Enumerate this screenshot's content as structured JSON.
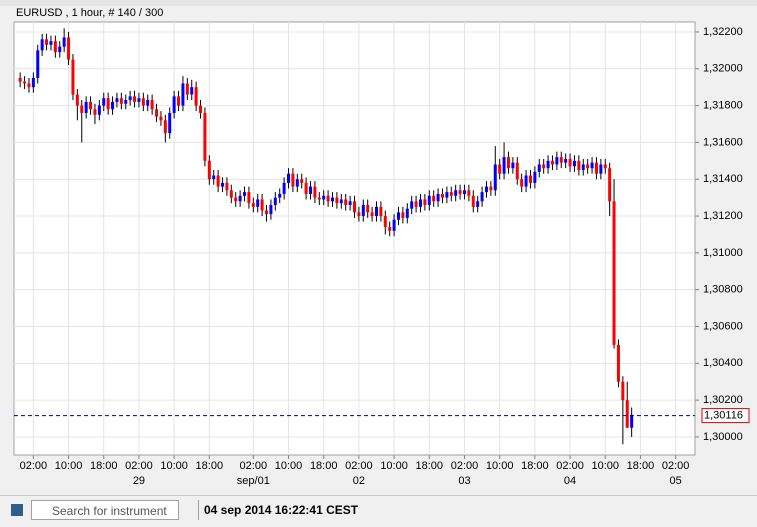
{
  "chart_data": {
    "type": "candlestick",
    "title": "EURUSD , 1 hour, # 140 / 300",
    "up_color": "#0000ff",
    "down_color": "#ff0000",
    "grid": true,
    "xlim": [
      -1.4,
      153.4
    ],
    "ylim": [
      1.29902,
      1.32254
    ],
    "xticks": [
      {
        "value": 3,
        "label": "02:00"
      },
      {
        "value": 11,
        "label": "10:00"
      },
      {
        "value": 19,
        "label": "18:00"
      },
      {
        "value": 27,
        "label": "02:00"
      },
      {
        "value": 35,
        "label": "10:00"
      },
      {
        "value": 43,
        "label": "18:00"
      },
      {
        "value": 53,
        "label": "02:00"
      },
      {
        "value": 61,
        "label": "10:00"
      },
      {
        "value": 69,
        "label": "18:00"
      },
      {
        "value": 77,
        "label": "02:00"
      },
      {
        "value": 85,
        "label": "10:00"
      },
      {
        "value": 93,
        "label": "18:00"
      },
      {
        "value": 101,
        "label": "02:00"
      },
      {
        "value": 109,
        "label": "10:00"
      },
      {
        "value": 117,
        "label": "18:00"
      },
      {
        "value": 125,
        "label": "02:00"
      },
      {
        "value": 133,
        "label": "10:00"
      },
      {
        "value": 141,
        "label": "18:00"
      },
      {
        "value": 149,
        "label": "02:00"
      }
    ],
    "date_ticks": [
      {
        "value": 27,
        "label": "29"
      },
      {
        "value": 53,
        "label": "sep/01"
      },
      {
        "value": 77,
        "label": "02"
      },
      {
        "value": 101,
        "label": "03"
      },
      {
        "value": 125,
        "label": "04"
      },
      {
        "value": 149,
        "label": "05"
      }
    ],
    "yticks": [
      {
        "value": 1.3,
        "label": "1,30000"
      },
      {
        "value": 1.302,
        "label": "1,30200"
      },
      {
        "value": 1.304,
        "label": "1,30400"
      },
      {
        "value": 1.306,
        "label": "1,30600"
      },
      {
        "value": 1.308,
        "label": "1,30800"
      },
      {
        "value": 1.31,
        "label": "1,31000"
      },
      {
        "value": 1.312,
        "label": "1,31200"
      },
      {
        "value": 1.314,
        "label": "1,31400"
      },
      {
        "value": 1.316,
        "label": "1,31600"
      },
      {
        "value": 1.318,
        "label": "1,31800"
      },
      {
        "value": 1.32,
        "label": "1,32000"
      },
      {
        "value": 1.322,
        "label": "1,32200"
      }
    ],
    "current_price": {
      "value": 1.30116,
      "label": "1,30116"
    },
    "candles": [
      [
        1.3195,
        1.3198,
        1.319,
        1.3193
      ],
      [
        1.3193,
        1.3196,
        1.3189,
        1.3192
      ],
      [
        1.3192,
        1.3195,
        1.3187,
        1.319
      ],
      [
        1.319,
        1.3198,
        1.3187,
        1.3195
      ],
      [
        1.3195,
        1.3213,
        1.3192,
        1.321
      ],
      [
        1.321,
        1.3219,
        1.3207,
        1.3216
      ],
      [
        1.3216,
        1.3219,
        1.321,
        1.3213
      ],
      [
        1.3213,
        1.3218,
        1.321,
        1.3215
      ],
      [
        1.3215,
        1.3218,
        1.3206,
        1.3209
      ],
      [
        1.3209,
        1.3215,
        1.3206,
        1.3212
      ],
      [
        1.3212,
        1.3222,
        1.3209,
        1.3217
      ],
      [
        1.3217,
        1.322,
        1.3202,
        1.3205
      ],
      [
        1.3205,
        1.3208,
        1.3183,
        1.3186
      ],
      [
        1.3186,
        1.3189,
        1.3172,
        1.318
      ],
      [
        1.318,
        1.3183,
        1.316,
        1.3176
      ],
      [
        1.3176,
        1.3185,
        1.3173,
        1.3182
      ],
      [
        1.3182,
        1.3185,
        1.3175,
        1.3178
      ],
      [
        1.3178,
        1.3181,
        1.317,
        1.3175
      ],
      [
        1.3175,
        1.3183,
        1.3172,
        1.318
      ],
      [
        1.318,
        1.3187,
        1.3177,
        1.3184
      ],
      [
        1.3184,
        1.3187,
        1.3175,
        1.3178
      ],
      [
        1.3178,
        1.3185,
        1.3175,
        1.3182
      ],
      [
        1.3182,
        1.3187,
        1.3179,
        1.3184
      ],
      [
        1.3184,
        1.3187,
        1.3178,
        1.3181
      ],
      [
        1.3181,
        1.3186,
        1.3178,
        1.3183
      ],
      [
        1.3183,
        1.3188,
        1.318,
        1.3185
      ],
      [
        1.3185,
        1.3188,
        1.3179,
        1.3182
      ],
      [
        1.3182,
        1.3187,
        1.3179,
        1.3184
      ],
      [
        1.3184,
        1.3187,
        1.3177,
        1.318
      ],
      [
        1.318,
        1.3186,
        1.3177,
        1.3183
      ],
      [
        1.3183,
        1.3186,
        1.3175,
        1.3178
      ],
      [
        1.3178,
        1.3181,
        1.3171,
        1.3174
      ],
      [
        1.3174,
        1.3177,
        1.3169,
        1.3172
      ],
      [
        1.3172,
        1.3175,
        1.316,
        1.3165
      ],
      [
        1.3165,
        1.3179,
        1.3162,
        1.3176
      ],
      [
        1.3176,
        1.3188,
        1.3173,
        1.3185
      ],
      [
        1.3185,
        1.3188,
        1.3177,
        1.318
      ],
      [
        1.318,
        1.3196,
        1.3177,
        1.3192
      ],
      [
        1.3192,
        1.3195,
        1.3183,
        1.3186
      ],
      [
        1.3186,
        1.3194,
        1.3183,
        1.319
      ],
      [
        1.319,
        1.3193,
        1.3177,
        1.318
      ],
      [
        1.318,
        1.3183,
        1.3173,
        1.3176
      ],
      [
        1.3176,
        1.3179,
        1.3147,
        1.315
      ],
      [
        1.315,
        1.3153,
        1.3137,
        1.314
      ],
      [
        1.314,
        1.3145,
        1.3137,
        1.3142
      ],
      [
        1.3142,
        1.3145,
        1.3133,
        1.3136
      ],
      [
        1.3136,
        1.3141,
        1.3133,
        1.3138
      ],
      [
        1.3138,
        1.3141,
        1.3131,
        1.3134
      ],
      [
        1.3134,
        1.3137,
        1.3127,
        1.313
      ],
      [
        1.313,
        1.3133,
        1.3125,
        1.3128
      ],
      [
        1.3128,
        1.3134,
        1.3125,
        1.3131
      ],
      [
        1.3131,
        1.3136,
        1.3128,
        1.3133
      ],
      [
        1.3133,
        1.3136,
        1.3124,
        1.3127
      ],
      [
        1.3127,
        1.313,
        1.3122,
        1.3125
      ],
      [
        1.3125,
        1.3132,
        1.3122,
        1.3129
      ],
      [
        1.3129,
        1.3132,
        1.312,
        1.3123
      ],
      [
        1.3123,
        1.3126,
        1.3117,
        1.3121
      ],
      [
        1.3121,
        1.3129,
        1.3118,
        1.3126
      ],
      [
        1.3126,
        1.3133,
        1.3123,
        1.313
      ],
      [
        1.313,
        1.3135,
        1.3127,
        1.3132
      ],
      [
        1.3132,
        1.3141,
        1.3129,
        1.3138
      ],
      [
        1.3138,
        1.3146,
        1.3135,
        1.3143
      ],
      [
        1.3143,
        1.3146,
        1.3133,
        1.3136
      ],
      [
        1.3136,
        1.3143,
        1.3133,
        1.314
      ],
      [
        1.314,
        1.3143,
        1.3135,
        1.3138
      ],
      [
        1.3138,
        1.3141,
        1.3129,
        1.3132
      ],
      [
        1.3132,
        1.3139,
        1.3129,
        1.3136
      ],
      [
        1.3136,
        1.3139,
        1.3127,
        1.313
      ],
      [
        1.313,
        1.3133,
        1.3126,
        1.3129
      ],
      [
        1.3129,
        1.3134,
        1.3126,
        1.3131
      ],
      [
        1.3131,
        1.3134,
        1.3125,
        1.3128
      ],
      [
        1.3128,
        1.3133,
        1.3125,
        1.313
      ],
      [
        1.313,
        1.3133,
        1.3124,
        1.3127
      ],
      [
        1.3127,
        1.3132,
        1.3124,
        1.3129
      ],
      [
        1.3129,
        1.3132,
        1.3123,
        1.3126
      ],
      [
        1.3126,
        1.3131,
        1.3123,
        1.3128
      ],
      [
        1.3128,
        1.3131,
        1.3119,
        1.3122
      ],
      [
        1.3122,
        1.3125,
        1.3117,
        1.312
      ],
      [
        1.312,
        1.3129,
        1.3117,
        1.3126
      ],
      [
        1.3126,
        1.3129,
        1.3119,
        1.3122
      ],
      [
        1.3122,
        1.3125,
        1.3117,
        1.312
      ],
      [
        1.312,
        1.3128,
        1.3117,
        1.3125
      ],
      [
        1.3125,
        1.3128,
        1.3117,
        1.312
      ],
      [
        1.312,
        1.3123,
        1.311,
        1.3114
      ],
      [
        1.3114,
        1.3117,
        1.3109,
        1.3112
      ],
      [
        1.3112,
        1.3121,
        1.3109,
        1.3118
      ],
      [
        1.3118,
        1.3125,
        1.3115,
        1.3122
      ],
      [
        1.3122,
        1.3125,
        1.3116,
        1.3119
      ],
      [
        1.3119,
        1.3127,
        1.3116,
        1.3124
      ],
      [
        1.3124,
        1.3131,
        1.3121,
        1.3128
      ],
      [
        1.3128,
        1.3131,
        1.3122,
        1.3125
      ],
      [
        1.3125,
        1.3132,
        1.3122,
        1.3129
      ],
      [
        1.3129,
        1.3132,
        1.3123,
        1.3126
      ],
      [
        1.3126,
        1.3134,
        1.3123,
        1.3131
      ],
      [
        1.3131,
        1.3134,
        1.3125,
        1.3128
      ],
      [
        1.3128,
        1.3135,
        1.3125,
        1.3132
      ],
      [
        1.3132,
        1.3135,
        1.3127,
        1.313
      ],
      [
        1.313,
        1.3136,
        1.3127,
        1.3133
      ],
      [
        1.3133,
        1.3136,
        1.3128,
        1.3131
      ],
      [
        1.3131,
        1.3137,
        1.3128,
        1.3134
      ],
      [
        1.3134,
        1.3137,
        1.3129,
        1.3132
      ],
      [
        1.3132,
        1.3137,
        1.3129,
        1.3134
      ],
      [
        1.3134,
        1.3137,
        1.3128,
        1.3131
      ],
      [
        1.3131,
        1.3134,
        1.3122,
        1.3125
      ],
      [
        1.3125,
        1.3131,
        1.3122,
        1.3128
      ],
      [
        1.3128,
        1.3136,
        1.3125,
        1.3133
      ],
      [
        1.3133,
        1.3139,
        1.313,
        1.3136
      ],
      [
        1.3136,
        1.3139,
        1.3131,
        1.3134
      ],
      [
        1.3134,
        1.3158,
        1.3131,
        1.3148
      ],
      [
        1.3148,
        1.3151,
        1.314,
        1.3143
      ],
      [
        1.3143,
        1.316,
        1.314,
        1.3152
      ],
      [
        1.3152,
        1.3155,
        1.3143,
        1.3146
      ],
      [
        1.3146,
        1.3152,
        1.3143,
        1.3149
      ],
      [
        1.3149,
        1.3152,
        1.3137,
        1.314
      ],
      [
        1.314,
        1.3143,
        1.3133,
        1.3136
      ],
      [
        1.3136,
        1.3145,
        1.3133,
        1.3142
      ],
      [
        1.3142,
        1.3145,
        1.3135,
        1.3138
      ],
      [
        1.3138,
        1.3147,
        1.3135,
        1.3144
      ],
      [
        1.3144,
        1.3151,
        1.3141,
        1.3148
      ],
      [
        1.3148,
        1.3151,
        1.3143,
        1.3146
      ],
      [
        1.3146,
        1.3153,
        1.3143,
        1.315
      ],
      [
        1.315,
        1.3153,
        1.3145,
        1.3148
      ],
      [
        1.3148,
        1.3155,
        1.3145,
        1.3152
      ],
      [
        1.3152,
        1.3155,
        1.3146,
        1.3149
      ],
      [
        1.3149,
        1.3154,
        1.3146,
        1.3151
      ],
      [
        1.3151,
        1.3154,
        1.3144,
        1.3147
      ],
      [
        1.3147,
        1.3153,
        1.3144,
        1.315
      ],
      [
        1.315,
        1.3153,
        1.3142,
        1.3145
      ],
      [
        1.3145,
        1.3151,
        1.3142,
        1.3148
      ],
      [
        1.3148,
        1.3151,
        1.3143,
        1.3146
      ],
      [
        1.3146,
        1.3152,
        1.3143,
        1.3149
      ],
      [
        1.3149,
        1.3152,
        1.314,
        1.3143
      ],
      [
        1.3143,
        1.3151,
        1.314,
        1.3148
      ],
      [
        1.3148,
        1.3151,
        1.3143,
        1.3146
      ],
      [
        1.3146,
        1.3149,
        1.312,
        1.3128
      ],
      [
        1.3128,
        1.314,
        1.3048,
        1.305
      ],
      [
        1.305,
        1.3053,
        1.3027,
        1.303
      ],
      [
        1.303,
        1.3033,
        1.2996,
        1.302
      ],
      [
        1.302,
        1.303,
        1.3005,
        1.3005
      ],
      [
        1.3005,
        1.3016,
        1.3,
        1.3012
      ]
    ]
  },
  "status_bar": {
    "search_placeholder": "Search for instrument",
    "timestamp": "04 sep 2014 16:22:41 CEST"
  }
}
